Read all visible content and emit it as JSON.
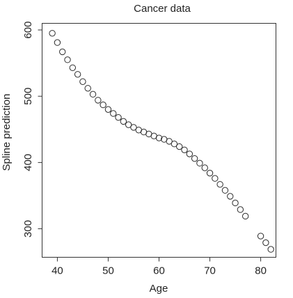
{
  "chart_data": {
    "type": "scatter",
    "title": "Cancer data",
    "xlabel": "Age",
    "ylabel": "Spline prediction",
    "xlim": [
      37,
      83
    ],
    "ylim": [
      257,
      610
    ],
    "xticks": [
      40,
      50,
      60,
      70,
      80
    ],
    "yticks": [
      300,
      400,
      500,
      600
    ],
    "grid": false,
    "marker": "open-circle",
    "series": [
      {
        "x": [
          39,
          40,
          41,
          42,
          43,
          44,
          45,
          46,
          47,
          48,
          49,
          50,
          51,
          52,
          53,
          54,
          55,
          56,
          57,
          58,
          59,
          60,
          61,
          62,
          63,
          64,
          65,
          66,
          67,
          68,
          69,
          70,
          71,
          72,
          73,
          74,
          75,
          76,
          77,
          80,
          81,
          82
        ],
        "y": [
          595,
          581,
          567,
          555,
          543,
          533,
          522,
          512,
          503,
          494,
          487,
          480,
          474,
          468,
          462,
          457,
          453,
          449,
          446,
          443,
          440,
          437,
          435,
          432,
          428,
          424,
          419,
          413,
          406,
          399,
          392,
          384,
          376,
          367,
          358,
          349,
          339,
          329,
          319,
          289,
          279,
          269
        ]
      }
    ]
  }
}
